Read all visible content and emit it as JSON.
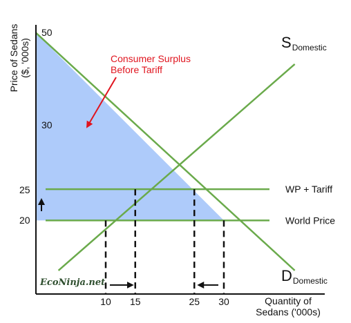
{
  "chart_data": {
    "type": "line",
    "ylabel_line1": "Price of Sedans",
    "ylabel_line2": "($, '000s)",
    "xlabel_line1": "Quantity of",
    "xlabel_line2": "Sedans ('000s)",
    "xticks": [
      {
        "value": 10,
        "label": "10"
      },
      {
        "value": 15,
        "label": "15"
      },
      {
        "value": 25,
        "label": "25"
      },
      {
        "value": 30,
        "label": "30"
      }
    ],
    "yticks": [
      {
        "value": 20,
        "label": "20"
      },
      {
        "value": 25,
        "label": "25"
      },
      {
        "value": 30,
        "label": "30"
      },
      {
        "value": 50,
        "label": "50"
      }
    ],
    "series": [
      {
        "name": "S",
        "subscript": "Domestic",
        "points": [
          [
            2,
            12
          ],
          [
            42,
            45
          ]
        ]
      },
      {
        "name": "D",
        "subscript": "Domestic",
        "points": [
          [
            0,
            50
          ],
          [
            42,
            12
          ]
        ]
      },
      {
        "name": "WP + Tariff",
        "value": 25
      },
      {
        "name": "World Price",
        "value": 20
      }
    ],
    "shaded_region": {
      "label_line1": "Consumer Surplus",
      "label_line2": "Before Tariff",
      "points": [
        [
          0,
          50
        ],
        [
          0,
          20
        ],
        [
          30,
          20
        ]
      ]
    },
    "dashed_drops": [
      10,
      15,
      25,
      30
    ],
    "arrows": {
      "price": {
        "from": 20,
        "to": 25
      },
      "supply_qty": {
        "from": 10,
        "to": 15
      },
      "demand_qty": {
        "from": 30,
        "to": 25
      }
    },
    "watermark": "EcoNinja.net"
  }
}
